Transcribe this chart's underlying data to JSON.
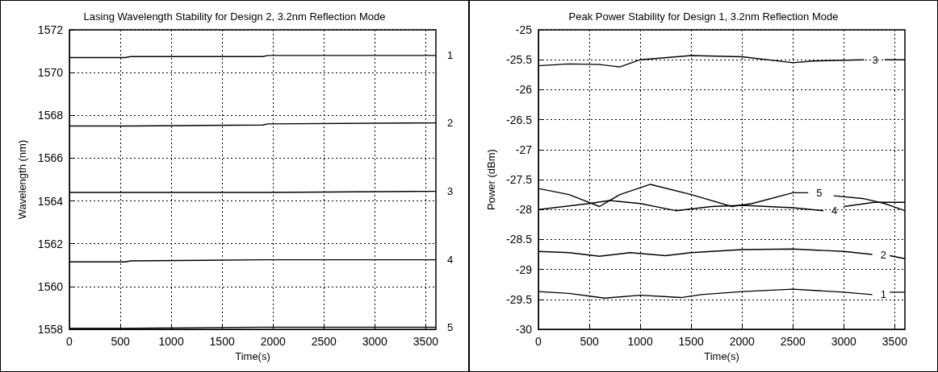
{
  "chart_data": [
    {
      "type": "line",
      "title": "Lasing Wavelength Stability for Design 2, 3.2nm Reflection Mode",
      "xlabel": "Time(s)",
      "ylabel": "Wavelength (nm)",
      "xlim": [
        0,
        3600
      ],
      "xticks": [
        0,
        500,
        1000,
        1500,
        2000,
        2500,
        3000,
        3500
      ],
      "ylim": [
        1558,
        1572
      ],
      "yticks": [
        1558,
        1560,
        1562,
        1564,
        1566,
        1568,
        1570,
        1572
      ],
      "grid": true,
      "marker": "none",
      "x": [
        0,
        550,
        600,
        1900,
        1950,
        3600
      ],
      "series": [
        {
          "name": "1",
          "color": "#000000",
          "values": [
            1570.7,
            1570.7,
            1570.75,
            1570.75,
            1570.8,
            1570.8
          ]
        },
        {
          "name": "2",
          "color": "#000000",
          "values": [
            1567.5,
            1567.5,
            1567.5,
            1567.55,
            1567.6,
            1567.65
          ]
        },
        {
          "name": "3",
          "color": "#000000",
          "values": [
            1564.4,
            1564.4,
            1564.4,
            1564.4,
            1564.4,
            1564.45
          ]
        },
        {
          "name": "4",
          "color": "#000000",
          "values": [
            1561.15,
            1561.15,
            1561.2,
            1561.25,
            1561.25,
            1561.25
          ]
        },
        {
          "name": "5",
          "color": "#000000",
          "values": [
            1558.05,
            1558.05,
            1558.05,
            1558.1,
            1558.1,
            1558.1
          ]
        }
      ]
    },
    {
      "type": "line",
      "title": "Peak Power Stability for Design 1, 3.2nm Reflection Mode",
      "xlabel": "Time(s)",
      "ylabel": "Power (dBm)",
      "xlim": [
        0,
        3600
      ],
      "xticks": [
        0,
        500,
        1000,
        1500,
        2000,
        2500,
        3000,
        3500
      ],
      "ylim": [
        -30,
        -25
      ],
      "yticks": [
        -30,
        -29.5,
        -29,
        -28.5,
        -28,
        -27.5,
        -27,
        -26.5,
        -26,
        -25.5,
        -25
      ],
      "grid": true,
      "marker": "none",
      "series": [
        {
          "name": "3",
          "color": "#000000",
          "x": [
            0,
            300,
            600,
            800,
            1000,
            1500,
            2000,
            2500,
            2700,
            3200,
            3300,
            3400,
            3600
          ],
          "values": [
            -25.6,
            -25.57,
            -25.58,
            -25.62,
            -25.5,
            -25.43,
            -25.45,
            -25.55,
            -25.52,
            -25.5,
            null,
            -25.5,
            -25.5
          ]
        },
        {
          "name": "5",
          "color": "#000000",
          "x": [
            0,
            300,
            600,
            800,
            1100,
            1500,
            1900,
            2100,
            2500,
            2650,
            2800,
            2900,
            3200,
            3400,
            3600
          ],
          "values": [
            -27.65,
            -27.75,
            -27.95,
            -27.75,
            -27.58,
            -27.75,
            -27.95,
            -27.9,
            -27.72,
            -27.72,
            null,
            -27.77,
            -27.82,
            -27.9,
            -28.02
          ]
        },
        {
          "name": "4",
          "color": "#000000",
          "x": [
            0,
            500,
            700,
            1000,
            1350,
            1700,
            2000,
            2500,
            2800,
            2900,
            3000,
            3300,
            3600
          ],
          "values": [
            -28.0,
            -27.9,
            -27.85,
            -27.9,
            -28.02,
            -27.95,
            -27.93,
            -27.97,
            -28.02,
            null,
            -27.95,
            -27.88,
            -27.88
          ]
        },
        {
          "name": "2",
          "color": "#000000",
          "x": [
            0,
            300,
            600,
            900,
            1250,
            1500,
            2000,
            2500,
            3000,
            3280,
            3350,
            3450,
            3600
          ],
          "values": [
            -28.7,
            -28.72,
            -28.78,
            -28.72,
            -28.77,
            -28.72,
            -28.67,
            -28.66,
            -28.7,
            -28.75,
            null,
            -28.77,
            -28.82
          ]
        },
        {
          "name": "1",
          "color": "#000000",
          "x": [
            0,
            300,
            650,
            1000,
            1400,
            1600,
            2000,
            2500,
            3000,
            3280,
            3350,
            3450,
            3600
          ],
          "values": [
            -29.37,
            -29.4,
            -29.48,
            -29.43,
            -29.47,
            -29.42,
            -29.37,
            -29.33,
            -29.38,
            -29.42,
            null,
            -29.38,
            -29.38
          ]
        }
      ]
    }
  ]
}
